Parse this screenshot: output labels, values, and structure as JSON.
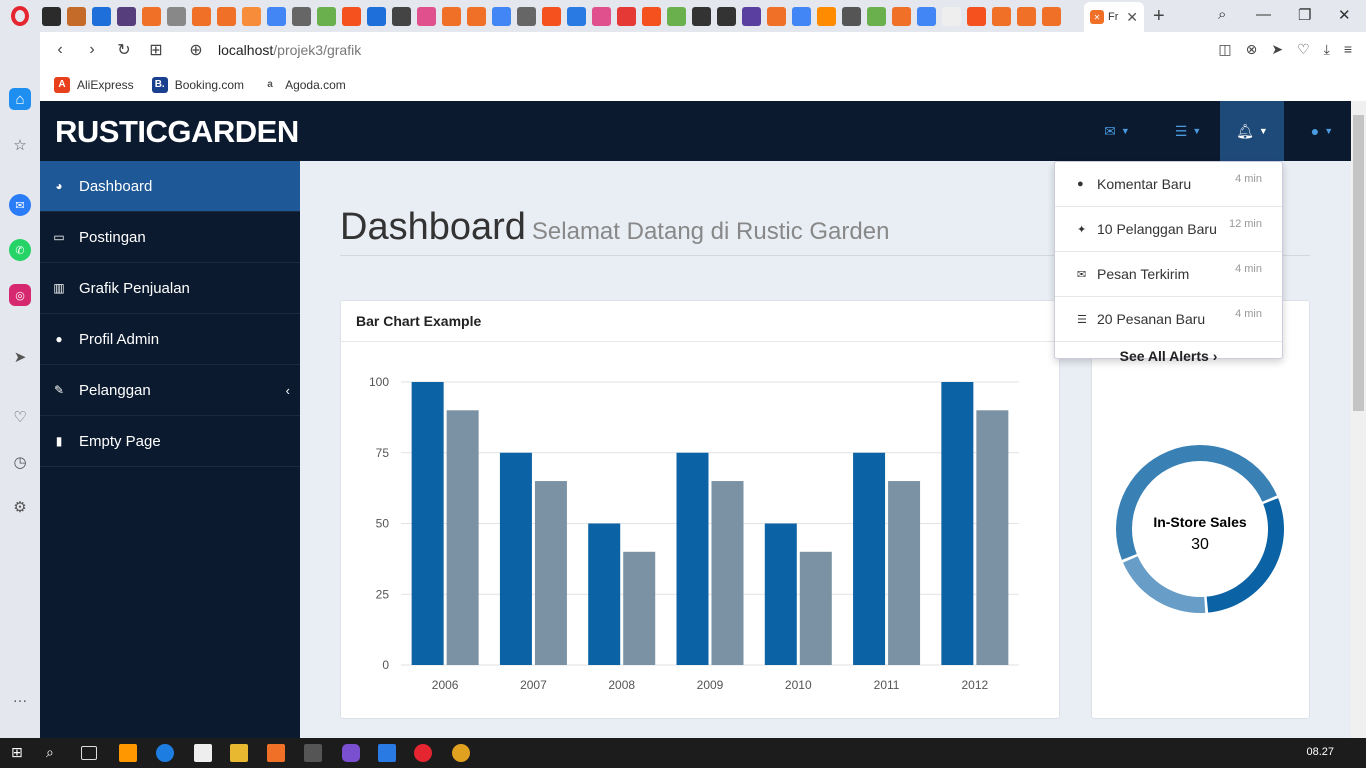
{
  "browser": {
    "active_tab_label": "Fr",
    "url_host": "localhost",
    "url_path": "/projek3/grafik",
    "bookmarks": [
      {
        "label": "AliExpress",
        "color": "#e8401c",
        "glyph": "A"
      },
      {
        "label": "Booking.com",
        "color": "#1b3f8f",
        "glyph": "B."
      },
      {
        "label": "Agoda.com",
        "color": "#ffffff",
        "glyph": "a"
      }
    ]
  },
  "app": {
    "brand": "RUSTICGARDEN",
    "nav_icons": [
      "envelope-icon",
      "tasks-icon",
      "bell-icon",
      "user-icon"
    ],
    "sidebar": [
      {
        "label": "Dashboard",
        "icon": "tachometer-icon",
        "glyph": "◕",
        "active": true
      },
      {
        "label": "Postingan",
        "icon": "desktop-icon",
        "glyph": "▭"
      },
      {
        "label": "Grafik Penjualan",
        "icon": "bar-chart-icon",
        "glyph": "▥"
      },
      {
        "label": "Profil Admin",
        "icon": "user-icon",
        "glyph": "●"
      },
      {
        "label": "Pelanggan",
        "icon": "edit-icon",
        "glyph": "✎",
        "chevron": "‹"
      },
      {
        "label": "Empty Page",
        "icon": "file-icon",
        "glyph": "▮"
      }
    ],
    "page_title": "Dashboard",
    "page_subtitle": "Selamat Datang di Rustic Garden",
    "bar_panel_title": "Bar Chart Example",
    "alerts": {
      "items": [
        {
          "label": "Komentar Baru",
          "time": "4 min",
          "icon": "comment-icon",
          "glyph": "●"
        },
        {
          "label": "10 Pelanggan Baru",
          "time": "12 min",
          "icon": "twitter-icon",
          "glyph": "✦"
        },
        {
          "label": "Pesan Terkirim",
          "time": "4 min",
          "icon": "envelope-icon",
          "glyph": "✉"
        },
        {
          "label": "20 Pesanan Baru",
          "time": "4 min",
          "icon": "tasks-icon",
          "glyph": "☰"
        }
      ],
      "see_all": "See All Alerts ›"
    }
  },
  "chart_data": [
    {
      "type": "bar",
      "categories": [
        "2006",
        "2007",
        "2008",
        "2009",
        "2010",
        "2011",
        "2012"
      ],
      "series": [
        {
          "values": [
            100,
            75,
            50,
            75,
            50,
            75,
            100
          ],
          "color": "#0b62a4"
        },
        {
          "values": [
            90,
            65,
            40,
            65,
            40,
            65,
            90
          ],
          "color": "#7a92a3"
        }
      ],
      "yticks": [
        "0",
        "25",
        "50",
        "75",
        "100"
      ],
      "ylim": [
        0,
        100
      ],
      "grid": true
    },
    {
      "type": "pie",
      "style": "donut",
      "center_label": "In-Store Sales",
      "center_value": "30",
      "slices": [
        {
          "value": 30,
          "color": "#0b62a4"
        },
        {
          "value": 50,
          "color": "#3980b5"
        },
        {
          "value": 20,
          "color": "#679dc6"
        }
      ]
    }
  ],
  "taskbar": {
    "clock": "08.27"
  }
}
